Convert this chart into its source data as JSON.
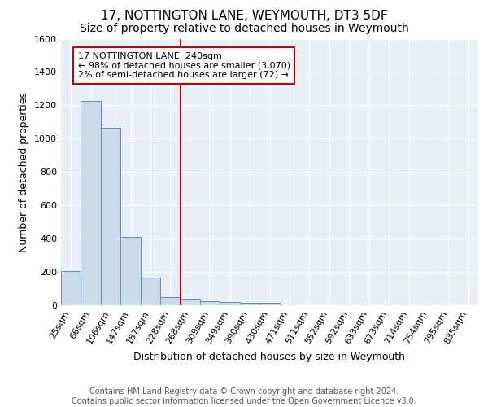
{
  "title": "17, NOTTINGTON LANE, WEYMOUTH, DT3 5DF",
  "subtitle": "Size of property relative to detached houses in Weymouth",
  "xlabel": "Distribution of detached houses by size in Weymouth",
  "ylabel": "Number of detached properties",
  "bar_labels": [
    "25sqm",
    "66sqm",
    "106sqm",
    "147sqm",
    "187sqm",
    "228sqm",
    "268sqm",
    "309sqm",
    "349sqm",
    "390sqm",
    "430sqm",
    "471sqm",
    "511sqm",
    "552sqm",
    "592sqm",
    "633sqm",
    "673sqm",
    "714sqm",
    "754sqm",
    "795sqm",
    "835sqm"
  ],
  "bar_values": [
    205,
    1225,
    1065,
    410,
    165,
    50,
    40,
    25,
    18,
    15,
    15,
    0,
    0,
    0,
    0,
    0,
    0,
    0,
    0,
    0,
    0
  ],
  "bar_color": "#ccd9e8",
  "bar_edge_color": "#5b8fc9",
  "vline_x": 5.5,
  "vline_color": "#cc0000",
  "annotation_text": "17 NOTTINGTON LANE: 240sqm\n← 98% of detached houses are smaller (3,070)\n2% of semi-detached houses are larger (72) →",
  "annotation_box_color": "#ffffff",
  "annotation_box_edge_color": "#cc0000",
  "ylim": [
    0,
    1600
  ],
  "yticks": [
    0,
    200,
    400,
    600,
    800,
    1000,
    1200,
    1400,
    1600
  ],
  "footer_text": "Contains HM Land Registry data © Crown copyright and database right 2024.\nContains public sector information licensed under the Open Government Licence v3.0.",
  "bg_color": "#e8eef5",
  "title_fontsize": 11,
  "subtitle_fontsize": 10,
  "xlabel_fontsize": 9,
  "ylabel_fontsize": 9,
  "tick_fontsize": 8,
  "annotation_fontsize": 8,
  "footer_fontsize": 7
}
